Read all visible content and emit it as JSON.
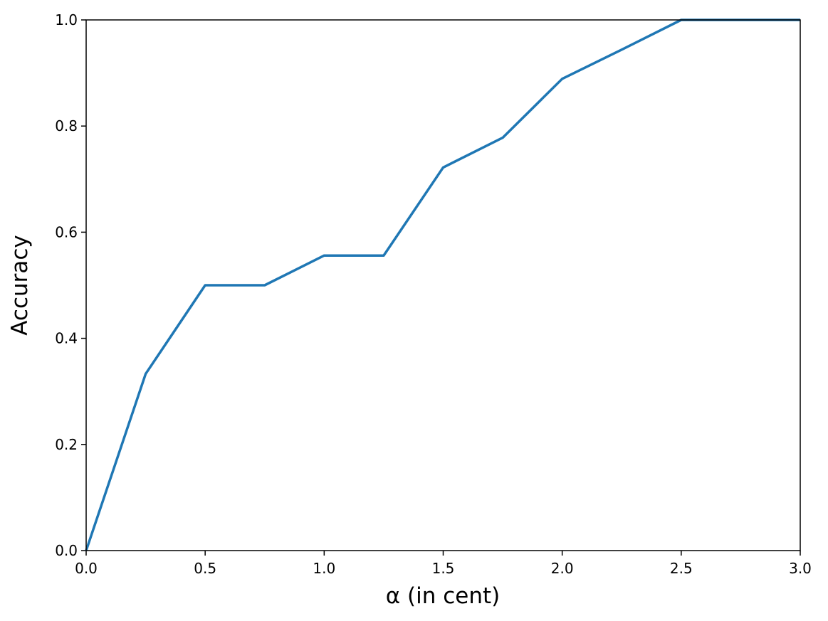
{
  "chart_data": {
    "type": "line",
    "xlabel": "α (in cent)",
    "ylabel": "Accuracy",
    "x": [
      0,
      0.25,
      0.5,
      0.75,
      1.0,
      1.25,
      1.5,
      1.75,
      2.0,
      2.25,
      2.5,
      2.75,
      3.0
    ],
    "series": [
      {
        "color": "#1f77b4",
        "values": [
          0,
          0.333,
          0.5,
          0.5,
          0.556,
          0.556,
          0.722,
          0.778,
          0.889,
          0.944,
          1.0,
          1.0,
          1.0
        ]
      }
    ],
    "xlim": [
      0,
      3
    ],
    "ylim": [
      0,
      1
    ],
    "xticks": [
      {
        "value": 0,
        "label": "0.0"
      },
      0.5,
      {
        "value": 1,
        "label": "1.0"
      },
      1.5,
      {
        "value": 2,
        "label": "2.0"
      },
      2.5,
      {
        "value": 3,
        "label": "3.0"
      }
    ],
    "yticks": [
      {
        "value": 0,
        "label": "0.0"
      },
      0.2,
      0.4,
      0.6,
      0.8,
      {
        "value": 1,
        "label": "1.0"
      }
    ],
    "grid": false
  }
}
